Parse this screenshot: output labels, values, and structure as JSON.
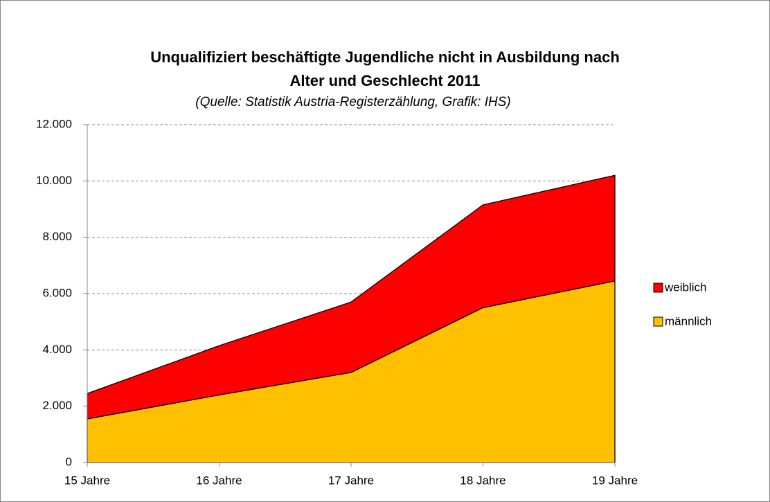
{
  "chart_data": {
    "type": "stacked_area",
    "title": "Unqualifiziert beschäftigte Jugendliche nicht in Ausbildung nach",
    "title_line2": "Alter und Geschlecht 2011",
    "subtitle": "(Quelle: Statistik Austria-Registerzählung, Grafik: IHS)",
    "categories": [
      "15 Jahre",
      "16 Jahre",
      "17 Jahre",
      "18 Jahre",
      "19 Jahre"
    ],
    "series": [
      {
        "name": "männlich",
        "color": "#ffc000",
        "values": [
          1550,
          2400,
          3200,
          5500,
          6450
        ]
      },
      {
        "name": "weiblich",
        "color": "#ff0000",
        "values": [
          900,
          1750,
          2500,
          3650,
          3750
        ]
      }
    ],
    "ylim": [
      0,
      12000
    ],
    "yticks": [
      0,
      {
        "value": 2000,
        "label": "2.000"
      },
      {
        "value": 4000,
        "label": "4.000"
      },
      {
        "value": 6000,
        "label": "6.000"
      },
      {
        "value": 8000,
        "label": "8.000"
      },
      {
        "value": 10000,
        "label": "10.000"
      },
      {
        "value": 12000,
        "label": "12.000"
      }
    ],
    "grid": true,
    "legend": "right"
  }
}
